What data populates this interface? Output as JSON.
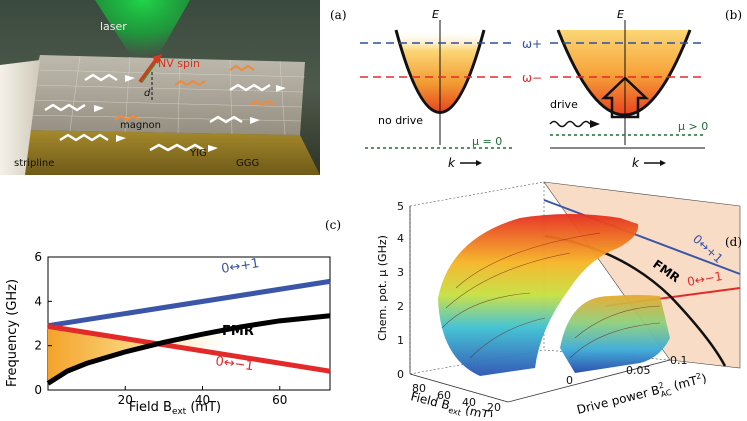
{
  "panels": {
    "a": {
      "label": "(a)",
      "texts": {
        "laser": "laser",
        "nv": "NV spin",
        "d": "d",
        "magnon": "magnon",
        "stripline": "stripline",
        "yig": "YIG",
        "ggg": "GGG"
      }
    },
    "b": {
      "label": "(b)",
      "energy_label": "E",
      "omega_plus": "ω+",
      "omega_minus": "ω−",
      "no_drive": "no drive",
      "drive": "drive",
      "mu_zero": "μ = 0",
      "mu_pos": "μ > 0",
      "k_label": "k"
    },
    "c": {
      "label": "(c)",
      "ylabel": "Frequency (GHz)",
      "xlabel": "Field B",
      "xlabel_sub": "ext",
      "xlabel_unit": " (mT)",
      "fmr": "FMR",
      "plus": "0↔+1",
      "minus": "0↔−1",
      "xticks": [
        "20",
        "40",
        "60"
      ],
      "yticks": [
        "0",
        "2",
        "4",
        "6"
      ]
    },
    "d": {
      "label": "(d)",
      "zlabel": "Chem. pot. μ (GHz)",
      "xlabel": "Field B",
      "xlabel_sub": "ext",
      "xlabel_unit": " (mT)",
      "ylabel": "Drive power B",
      "ylabel_sup": "2",
      "ylabel_sub": "AC",
      "ylabel_unit": " (mT",
      "ylabel_unit_sup": "2",
      "ylabel_close": ")",
      "fmr": "FMR",
      "plus": "0↔+1",
      "minus": "0↔−1",
      "zticks": [
        "0",
        "1",
        "2",
        "3",
        "4",
        "5"
      ],
      "fieldticks": [
        "80",
        "60",
        "40",
        "20"
      ],
      "powerticks": [
        "0",
        "0.05",
        "0.1"
      ]
    }
  },
  "chart_data": [
    {
      "type": "line",
      "title": "",
      "xlabel": "Field B_ext (mT)",
      "ylabel": "Frequency (GHz)",
      "xlim": [
        0,
        73
      ],
      "ylim": [
        0,
        6
      ],
      "series": [
        {
          "name": "0↔+1",
          "color": "#3b56a8",
          "x": [
            0,
            73
          ],
          "y": [
            2.9,
            4.9
          ]
        },
        {
          "name": "0↔−1",
          "color": "#e32a2a",
          "x": [
            0,
            73
          ],
          "y": [
            2.87,
            0.85
          ]
        },
        {
          "name": "FMR",
          "color": "#000000",
          "x": [
            0,
            5,
            10,
            20,
            30,
            40,
            50,
            60,
            73
          ],
          "y": [
            0.3,
            0.85,
            1.2,
            1.72,
            2.15,
            2.52,
            2.85,
            3.12,
            3.35
          ]
        }
      ]
    },
    {
      "type": "line",
      "title": "",
      "xlabel": "Field B_ext (mT)",
      "ylabel": "Chem. pot. μ (GHz)",
      "zlim": [
        0,
        5
      ],
      "series": [
        {
          "name": "0↔+1",
          "color": "#3b56a8"
        },
        {
          "name": "0↔−1",
          "color": "#e32a2a"
        },
        {
          "name": "FMR",
          "color": "#000000"
        }
      ]
    }
  ]
}
